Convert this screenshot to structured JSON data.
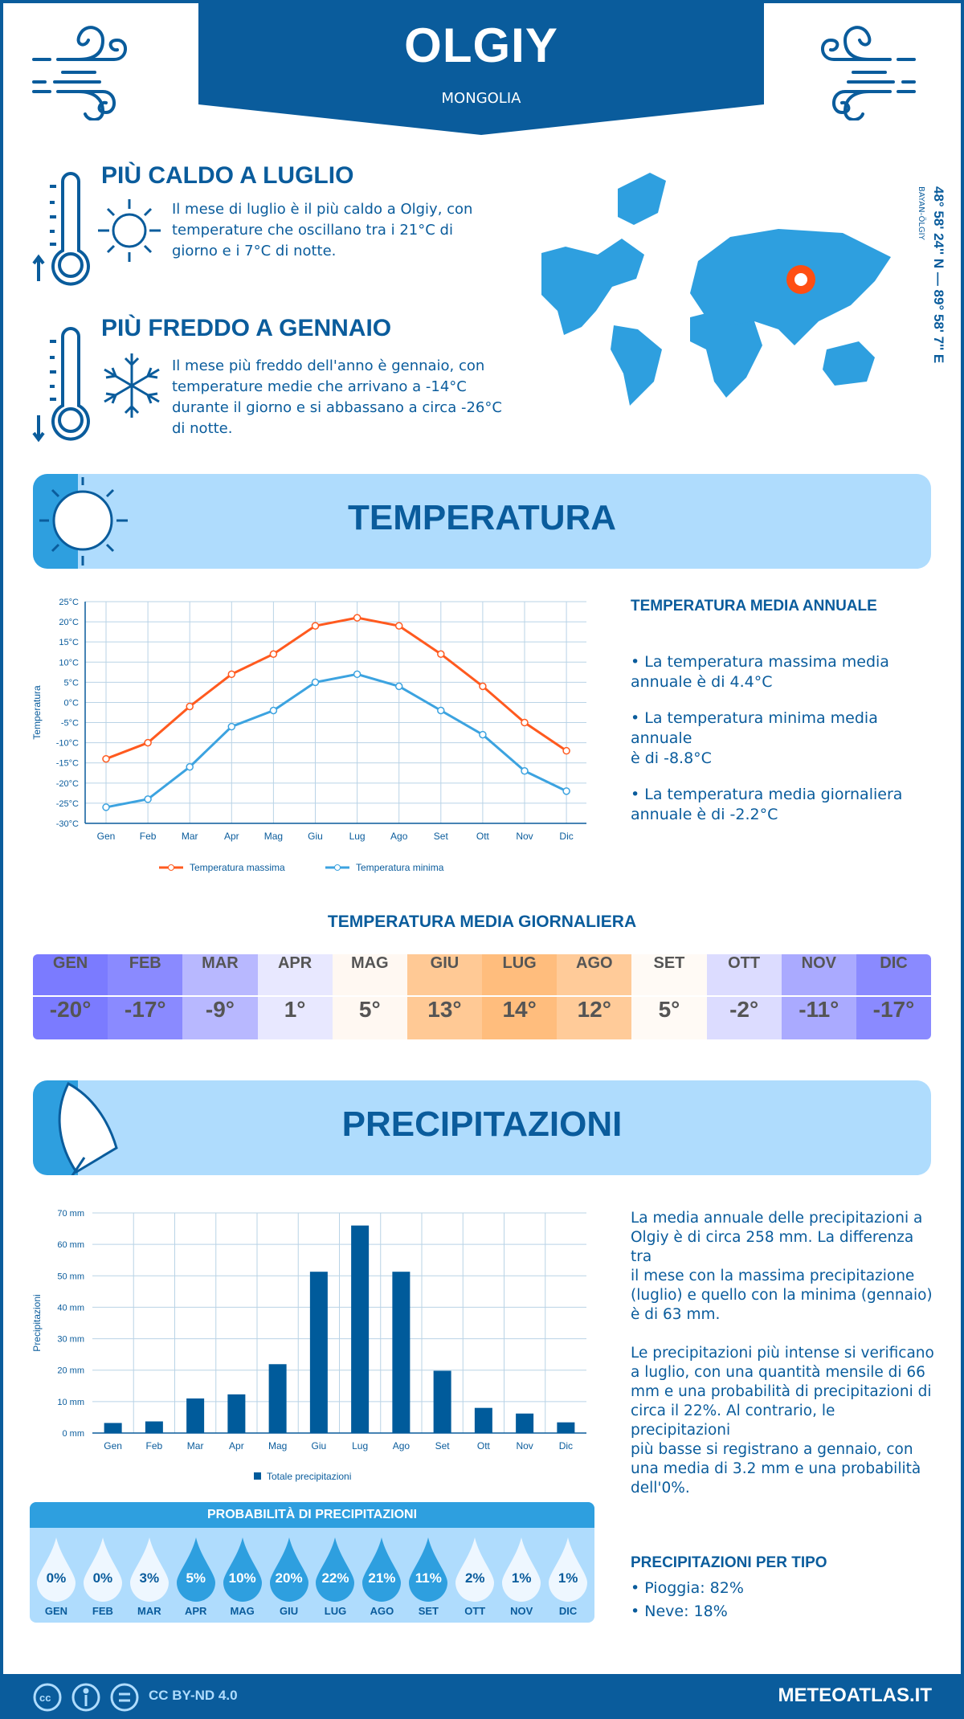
{
  "header": {
    "city": "OLGIY",
    "country": "MONGOLIA"
  },
  "warm": {
    "title": "PIÙ CALDO A LUGLIO",
    "lines": [
      "Il mese di luglio è il più caldo a Olgiy, con",
      "temperature che oscillano tra i 21°C di",
      "giorno e i 7°C di notte."
    ]
  },
  "cold": {
    "title": "PIÙ FREDDO A GENNAIO",
    "lines": [
      "Il mese più freddo dell'anno è gennaio, con",
      "temperature medie che arrivano a -14°C",
      "durante il giorno e si abbassano a circa -26°C",
      "di notte."
    ]
  },
  "map": {
    "coords": "48° 58' 24'' N — 89° 58' 7'' E",
    "region": "BAYAN-ÖLGIY",
    "marker_color": "#ff4e12"
  },
  "temperature": {
    "banner": "TEMPERATURA",
    "annual_title": "TEMPERATURA MEDIA ANNUALE",
    "bullets": [
      [
        "• La temperatura massima media",
        "annuale è di 4.4°C"
      ],
      [
        "• La temperatura minima media annuale",
        "è di -8.8°C"
      ],
      [
        "• La temperatura media giornaliera",
        "annuale è di -2.2°C"
      ]
    ]
  },
  "daily": {
    "title": "TEMPERATURA MEDIA GIORNALIERA",
    "months": [
      "GEN",
      "FEB",
      "MAR",
      "APR",
      "MAG",
      "GIU",
      "LUG",
      "AGO",
      "SET",
      "OTT",
      "NOV",
      "DIC"
    ],
    "values": [
      "-20°",
      "-17°",
      "-9°",
      "1°",
      "5°",
      "13°",
      "14°",
      "12°",
      "5°",
      "-2°",
      "-11°",
      "-17°"
    ],
    "colors": [
      "#7b7bff",
      "#8a8aff",
      "#b8b8ff",
      "#e8e8ff",
      "#fff8f2",
      "#ffc995",
      "#ffbd7d",
      "#ffcb99",
      "#fffaf5",
      "#dcdcff",
      "#aaaaff",
      "#8a8aff"
    ]
  },
  "precipitation": {
    "banner": "PRECIPITAZIONI",
    "paragraphs": [
      [
        "La media annuale delle precipitazioni a",
        "Olgiy è di circa 258 mm. La differenza tra",
        "il mese con la massima precipitazione",
        "(luglio) e quello con la minima (gennaio)",
        "è di 63 mm."
      ],
      [
        "Le precipitazioni più intense si verificano",
        "a luglio, con una quantità mensile di 66",
        "mm e una probabilità di precipitazioni di",
        "circa il 22%. Al contrario, le precipitazioni",
        "più basse si registrano a gennaio, con",
        "una media di 3.2 mm e una probabilità",
        "dell'0%."
      ]
    ],
    "prob_title": "PROBABILITÀ DI PRECIPITAZIONI",
    "prob_months": [
      "GEN",
      "FEB",
      "MAR",
      "APR",
      "MAG",
      "GIU",
      "LUG",
      "AGO",
      "SET",
      "OTT",
      "NOV",
      "DIC"
    ],
    "prob_values": [
      "0%",
      "0%",
      "3%",
      "5%",
      "10%",
      "20%",
      "22%",
      "21%",
      "11%",
      "2%",
      "1%",
      "1%"
    ],
    "prob_numeric": [
      0,
      0,
      3,
      5,
      10,
      20,
      22,
      21,
      11,
      2,
      1,
      1
    ],
    "type_title": "PRECIPITAZIONI PER TIPO",
    "types": [
      "• Pioggia: 82%",
      "• Neve: 18%"
    ]
  },
  "chart_data": [
    {
      "type": "line",
      "title": "",
      "xlabel": "",
      "ylabel": "Temperatura",
      "categories": [
        "Gen",
        "Feb",
        "Mar",
        "Apr",
        "Mag",
        "Giu",
        "Lug",
        "Ago",
        "Set",
        "Ott",
        "Nov",
        "Dic"
      ],
      "yticks": [
        "25°C",
        "20°C",
        "15°C",
        "10°C",
        "5°C",
        "0°C",
        "-5°C",
        "-10°C",
        "-15°C",
        "-20°C",
        "-25°C",
        "-30°C"
      ],
      "ylim": [
        -30,
        25
      ],
      "grid": true,
      "legend": "bottom",
      "series": [
        {
          "name": "Temperatura massima",
          "color": "#ff5a1f",
          "values": [
            -14,
            -10,
            -1,
            7,
            12,
            19,
            21,
            19,
            12,
            4,
            -5,
            -12
          ]
        },
        {
          "name": "Temperatura minima",
          "color": "#3ca3e0",
          "values": [
            -26,
            -24,
            -16,
            -6,
            -2,
            5,
            7,
            4,
            -2,
            -8,
            -17,
            -22
          ]
        }
      ]
    },
    {
      "type": "bar",
      "title": "",
      "xlabel": "",
      "ylabel": "Precipitazioni",
      "categories": [
        "Gen",
        "Feb",
        "Mar",
        "Apr",
        "Mag",
        "Giu",
        "Lug",
        "Ago",
        "Set",
        "Ott",
        "Nov",
        "Dic"
      ],
      "yticks": [
        "70 mm",
        "60 mm",
        "50 mm",
        "40 mm",
        "30 mm",
        "20 mm",
        "10 mm",
        "0 mm"
      ],
      "ylim": [
        0,
        70
      ],
      "grid": true,
      "legend": "bottom",
      "series": [
        {
          "name": "Totale precipitazioni",
          "color": "#005b9b",
          "values": [
            3.2,
            3.7,
            11,
            12.3,
            21.9,
            51.3,
            66,
            51.3,
            19.8,
            8,
            6.2,
            3.4
          ]
        }
      ]
    }
  ],
  "footer": {
    "license": "CC BY-ND 4.0",
    "brand": "METEOATLAS.IT",
    "icons": [
      "cc-icon",
      "by-icon",
      "nd-icon"
    ]
  }
}
